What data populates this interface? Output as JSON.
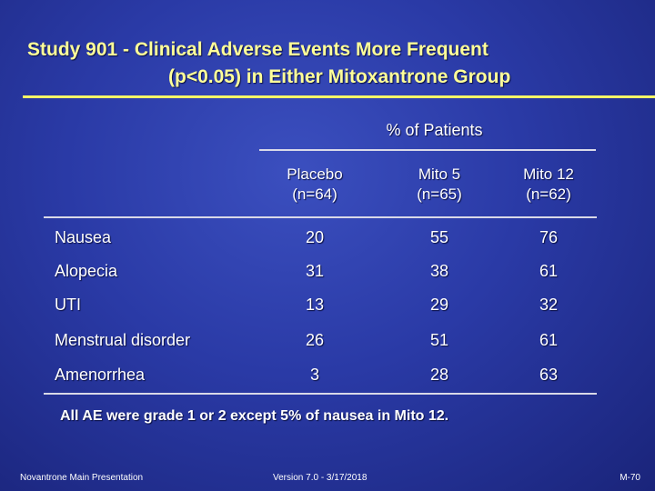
{
  "title": {
    "line1": "Study 901 - Clinical Adverse Events More Frequent",
    "line2": "(p<0.05) in Either Mitoxantrone Group"
  },
  "table": {
    "group_header": "% of Patients",
    "columns": [
      {
        "name": "Placebo",
        "n": "(n=64)"
      },
      {
        "name": "Mito 5",
        "n": "(n=65)"
      },
      {
        "name": "Mito 12",
        "n": "(n=62)"
      }
    ],
    "rows": [
      {
        "label": "Nausea",
        "values": [
          "20",
          "55",
          "76"
        ]
      },
      {
        "label": "Alopecia",
        "values": [
          "31",
          "38",
          "61"
        ]
      },
      {
        "label": "UTI",
        "values": [
          "13",
          "29",
          "32"
        ]
      },
      {
        "label": "Menstrual disorder",
        "values": [
          "26",
          "51",
          "61"
        ]
      },
      {
        "label": "Amenorrhea",
        "values": [
          "3",
          "28",
          "63"
        ]
      }
    ]
  },
  "footnote": "All AE were grade 1 or 2 except 5% of nausea in Mito 12.",
  "footer": {
    "left": "Novantrone Main Presentation",
    "center": "Version 7.0 - 3/17/2018",
    "right": "M-70"
  }
}
